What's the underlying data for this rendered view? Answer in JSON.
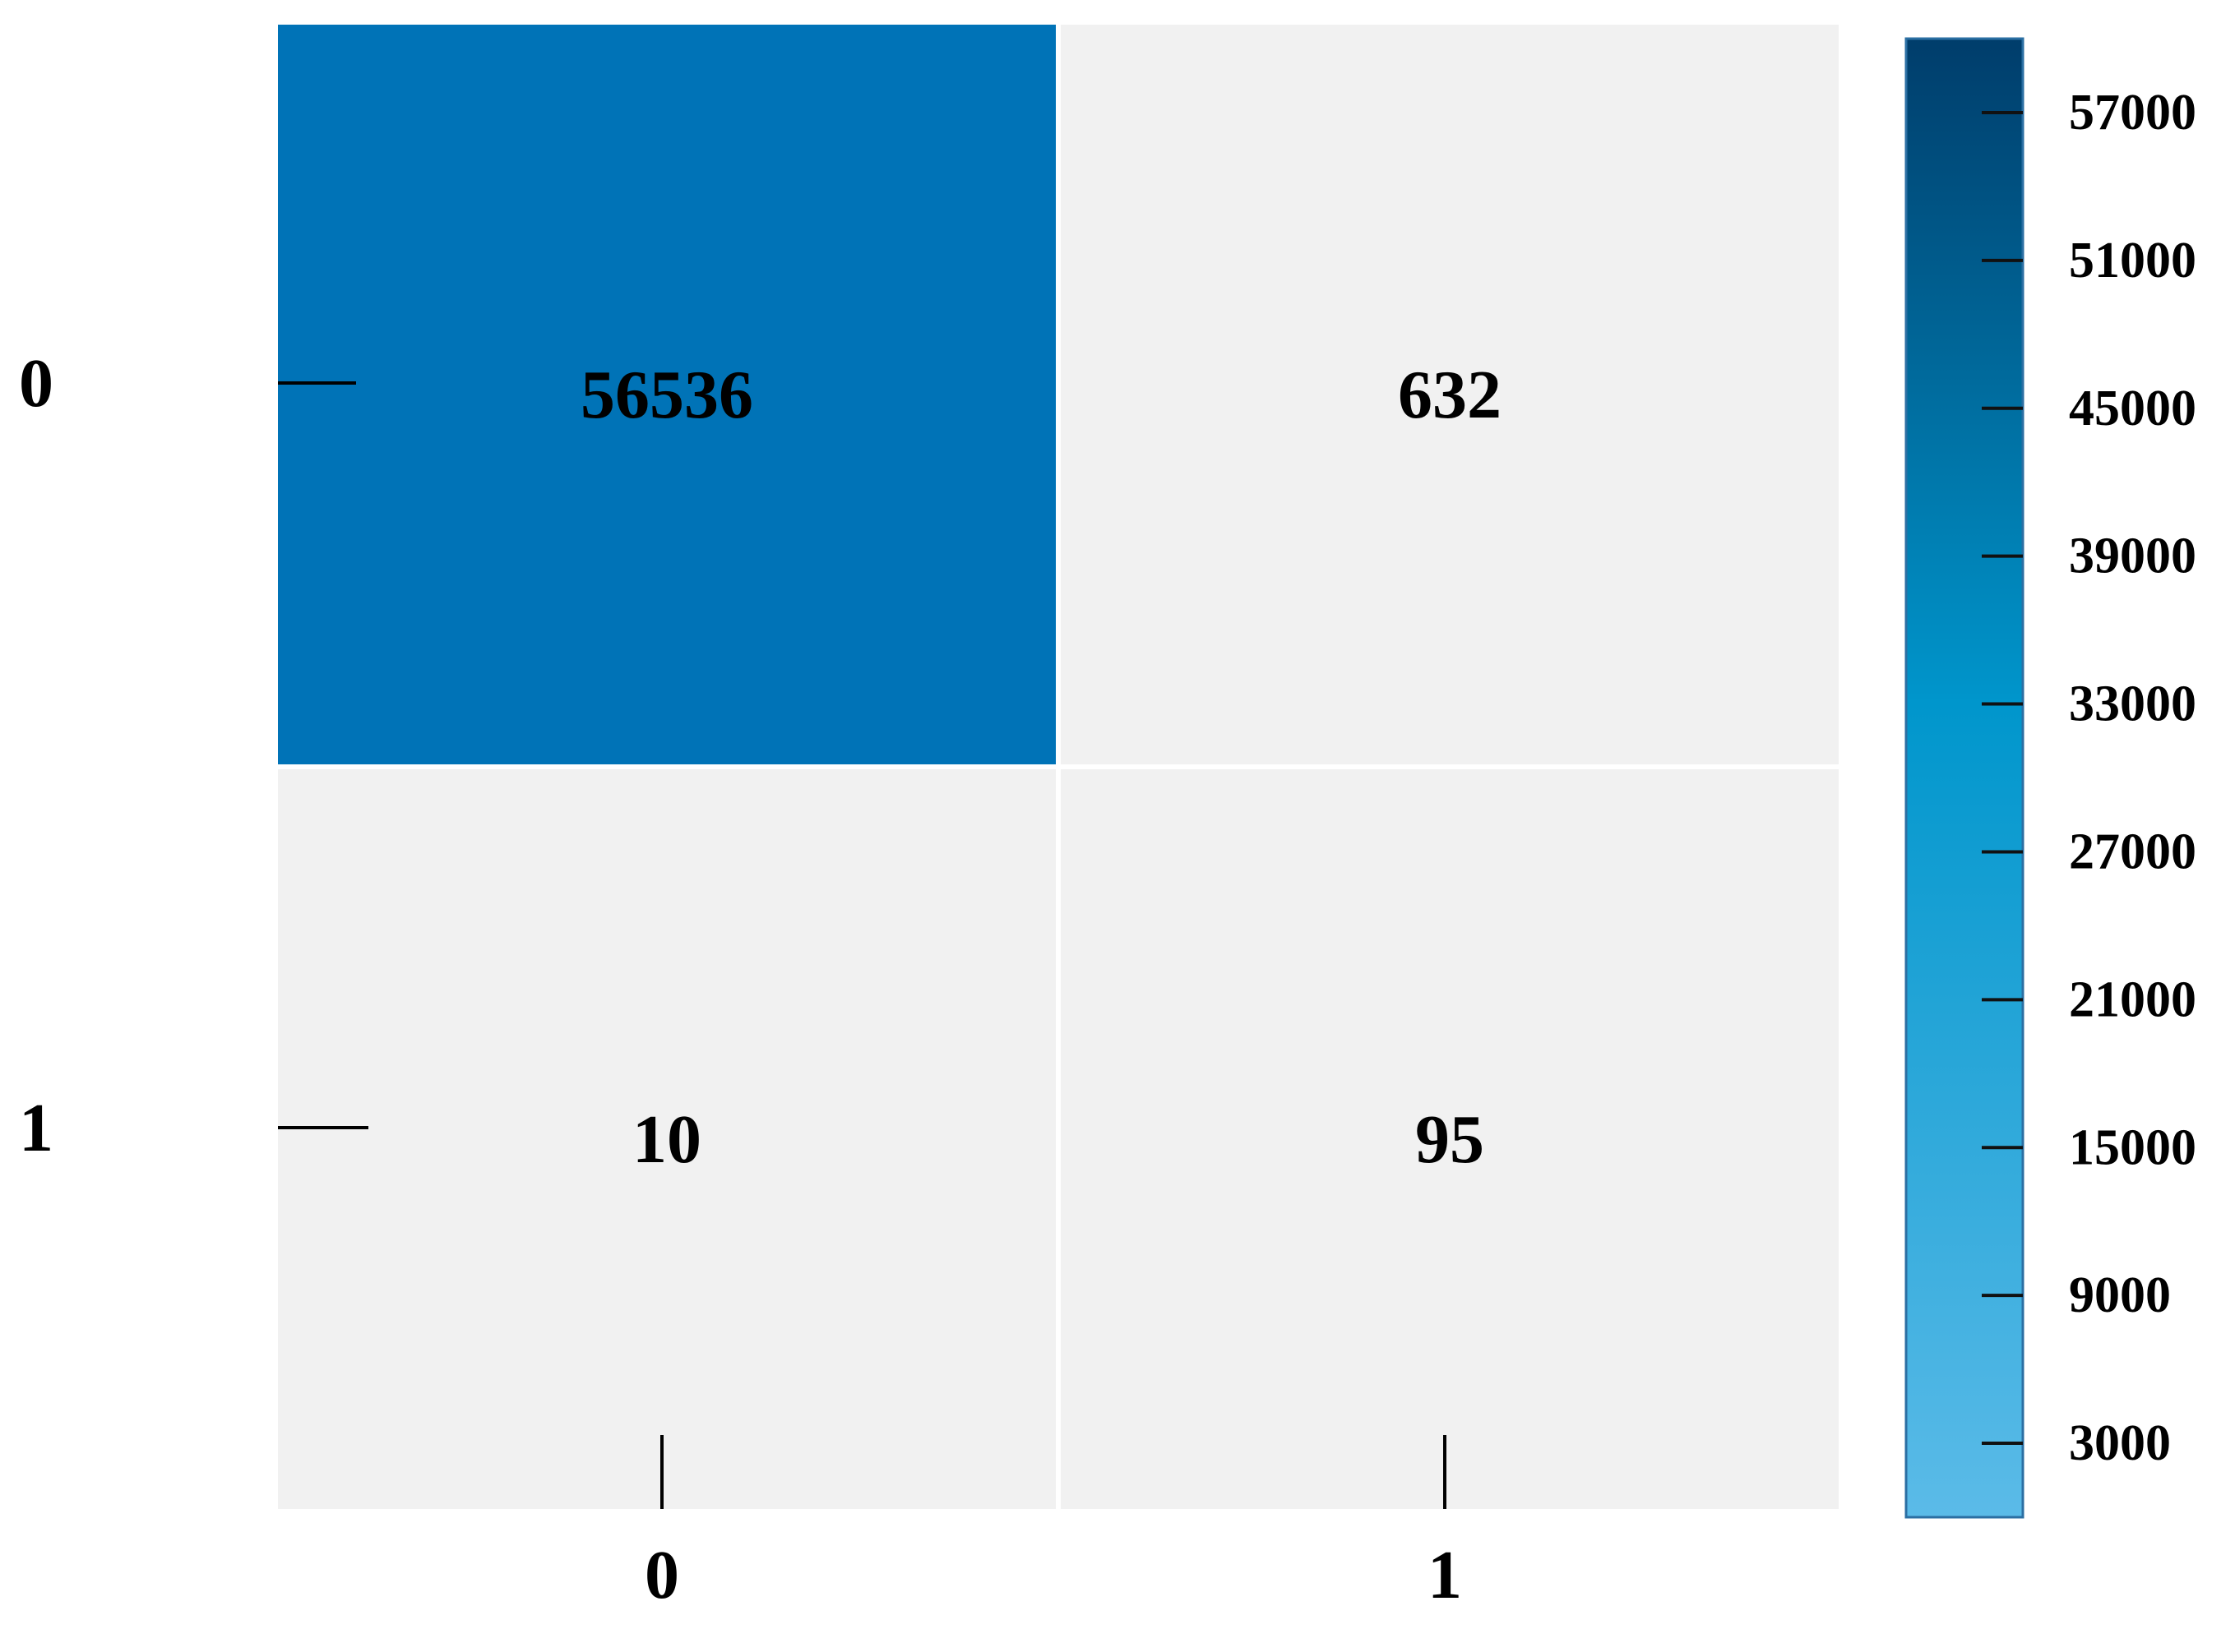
{
  "chart_data": {
    "type": "heatmap",
    "title": "",
    "xlabel": "",
    "ylabel": "",
    "x_categories": [
      "0",
      "1"
    ],
    "y_categories": [
      "0",
      "1"
    ],
    "matrix": [
      [
        56536,
        632
      ],
      [
        10,
        95
      ]
    ],
    "colorbar": {
      "range": [
        0,
        60000
      ],
      "ticks": [
        3000,
        9000,
        15000,
        21000,
        27000,
        33000,
        39000,
        45000,
        51000,
        57000
      ],
      "tick_labels": [
        "3000",
        "9000",
        "15000",
        "21000",
        "27000",
        "33000",
        "39000",
        "45000",
        "51000",
        "57000"
      ],
      "colors": {
        "low": "#5bbbe8",
        "mid": "#0096cc",
        "high": "#003d6b",
        "low_cell": "#f1f1f1",
        "high_cell": "#0073b7"
      }
    },
    "grid": false,
    "legend": "right"
  }
}
